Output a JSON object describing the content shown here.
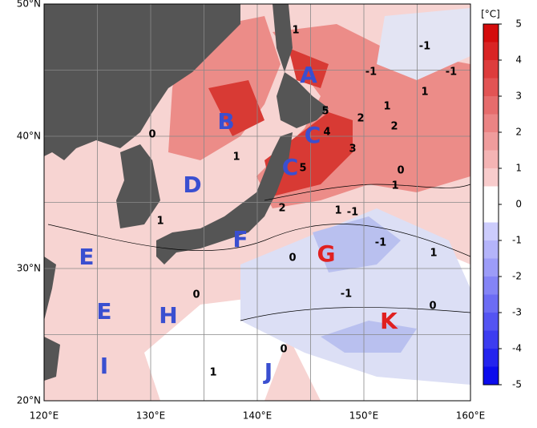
{
  "map": {
    "title_unit": "[°C]",
    "lon_labels": [
      "120°E",
      "130°E",
      "140°E",
      "150°E",
      "160°E"
    ],
    "lat_labels": [
      "50°N",
      "40°N",
      "30°N",
      "20°N"
    ],
    "colorbar": {
      "ticks": [
        5,
        4,
        3,
        2,
        1,
        0,
        -1,
        -2,
        -3,
        -4,
        -5
      ],
      "lim": [
        -5,
        5
      ]
    },
    "regions": [
      {
        "text": "A",
        "color": "#3a4fd0"
      },
      {
        "text": "B",
        "color": "#3a4fd0"
      },
      {
        "text": "C",
        "color": "#3a4fd0"
      },
      {
        "text": "C",
        "color": "#3a4fd0"
      },
      {
        "text": "D",
        "color": "#3a4fd0"
      },
      {
        "text": "E",
        "color": "#3a4fd0"
      },
      {
        "text": "E",
        "color": "#3a4fd0"
      },
      {
        "text": "F",
        "color": "#3a4fd0"
      },
      {
        "text": "G",
        "color": "#e02020"
      },
      {
        "text": "H",
        "color": "#3a4fd0"
      },
      {
        "text": "I",
        "color": "#3a4fd0"
      },
      {
        "text": "J",
        "color": "#3a4fd0"
      },
      {
        "text": "K",
        "color": "#e02020"
      }
    ],
    "contour_labels": [
      1,
      -1,
      -1,
      -1,
      1,
      1,
      5,
      2,
      2,
      4,
      0,
      3,
      1,
      5,
      0,
      1,
      2,
      1,
      -1,
      1,
      -1,
      1,
      0,
      0,
      -1,
      0,
      0,
      1
    ]
  }
}
